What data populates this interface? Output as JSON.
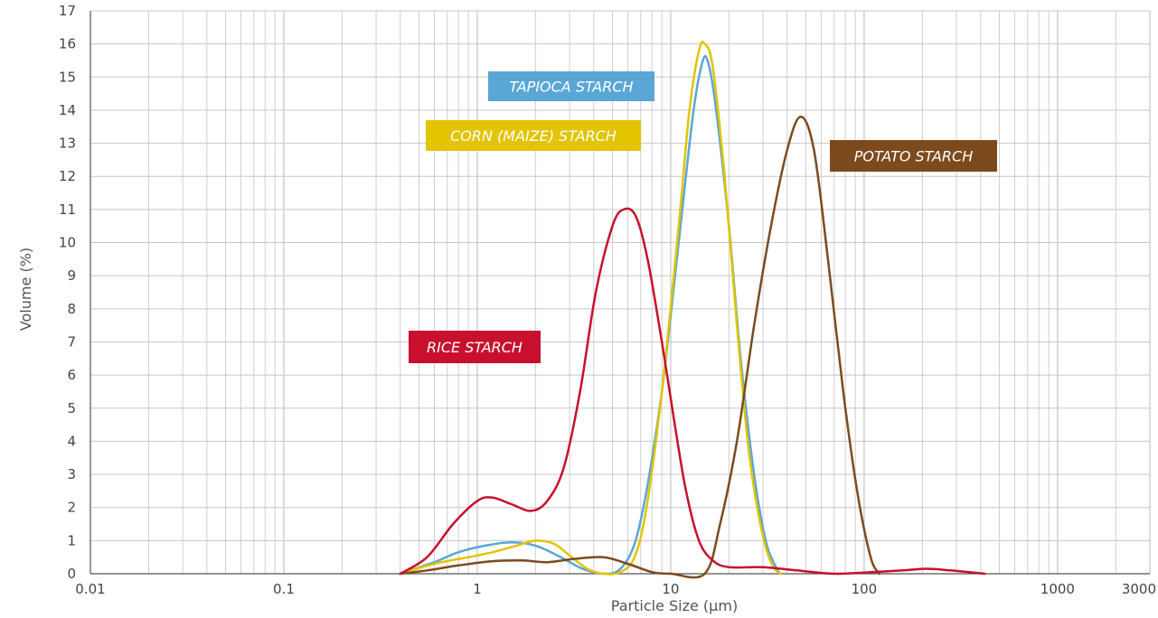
{
  "chart_data": {
    "type": "line",
    "xscale": "log",
    "xlabel": "Particle Size (µm)",
    "ylabel": "Volume (%)",
    "xlim": [
      0.01,
      3000
    ],
    "ylim": [
      0,
      17
    ],
    "grid": true,
    "x_tick_labels": [
      "0.01",
      "0.1",
      "1",
      "10",
      "100",
      "1000",
      "3000"
    ],
    "y_tick_labels": [
      "0",
      "1",
      "2",
      "3",
      "4",
      "5",
      "6",
      "7",
      "8",
      "9",
      "10",
      "11",
      "12",
      "13",
      "14",
      "15",
      "16",
      "17"
    ],
    "series": [
      {
        "name": "TAPIOCA STARCH",
        "color": "#5aa7d6",
        "points": [
          [
            0.4,
            0
          ],
          [
            0.6,
            0.35
          ],
          [
            0.8,
            0.65
          ],
          [
            1.1,
            0.85
          ],
          [
            1.5,
            0.95
          ],
          [
            2,
            0.85
          ],
          [
            2.7,
            0.5
          ],
          [
            3.5,
            0.15
          ],
          [
            4.5,
            0
          ],
          [
            5.5,
            0.15
          ],
          [
            6.5,
            0.9
          ],
          [
            7.5,
            2.5
          ],
          [
            9,
            5.5
          ],
          [
            11,
            10
          ],
          [
            13,
            13.8
          ],
          [
            14.5,
            15.4
          ],
          [
            15.5,
            15.5
          ],
          [
            17,
            14.2
          ],
          [
            20,
            10.5
          ],
          [
            23,
            6.5
          ],
          [
            27,
            3
          ],
          [
            31,
            1
          ],
          [
            35,
            0.2
          ],
          [
            37,
            0
          ]
        ]
      },
      {
        "name": "CORN (MAIZE) STARCH",
        "color": "#e2c400",
        "points": [
          [
            0.4,
            0
          ],
          [
            0.6,
            0.3
          ],
          [
            0.9,
            0.5
          ],
          [
            1.2,
            0.65
          ],
          [
            1.6,
            0.85
          ],
          [
            2,
            1
          ],
          [
            2.5,
            0.9
          ],
          [
            3,
            0.55
          ],
          [
            3.7,
            0.15
          ],
          [
            4.5,
            0
          ],
          [
            5.5,
            0.05
          ],
          [
            6.5,
            0.5
          ],
          [
            7.5,
            2
          ],
          [
            9,
            5.5
          ],
          [
            11,
            10.5
          ],
          [
            12.5,
            14
          ],
          [
            14,
            15.8
          ],
          [
            15,
            16
          ],
          [
            16.5,
            15.3
          ],
          [
            19,
            12
          ],
          [
            22,
            7.5
          ],
          [
            25,
            4
          ],
          [
            28,
            2
          ],
          [
            31,
            0.8
          ],
          [
            34,
            0.2
          ],
          [
            37,
            0
          ]
        ]
      },
      {
        "name": "POTATO STARCH",
        "color": "#7d4a1e",
        "points": [
          [
            0.4,
            0
          ],
          [
            0.55,
            0.1
          ],
          [
            0.8,
            0.25
          ],
          [
            1.2,
            0.38
          ],
          [
            1.7,
            0.4
          ],
          [
            2.3,
            0.35
          ],
          [
            3.2,
            0.45
          ],
          [
            4.5,
            0.5
          ],
          [
            6,
            0.3
          ],
          [
            8,
            0.05
          ],
          [
            10,
            0
          ],
          [
            15,
            0
          ],
          [
            18,
            1.5
          ],
          [
            22,
            4
          ],
          [
            27,
            7.5
          ],
          [
            33,
            10.5
          ],
          [
            40,
            12.8
          ],
          [
            47,
            13.8
          ],
          [
            55,
            12.8
          ],
          [
            65,
            9.5
          ],
          [
            78,
            5.5
          ],
          [
            92,
            2.5
          ],
          [
            108,
            0.5
          ],
          [
            120,
            0
          ]
        ]
      },
      {
        "name": "RICE STARCH",
        "color": "#c8102e",
        "points": [
          [
            0.4,
            0
          ],
          [
            0.55,
            0.5
          ],
          [
            0.75,
            1.5
          ],
          [
            1,
            2.2
          ],
          [
            1.2,
            2.3
          ],
          [
            1.5,
            2.1
          ],
          [
            1.9,
            1.9
          ],
          [
            2.3,
            2.2
          ],
          [
            2.8,
            3.2
          ],
          [
            3.4,
            5.5
          ],
          [
            4.1,
            8.5
          ],
          [
            5,
            10.5
          ],
          [
            5.7,
            11
          ],
          [
            6.6,
            10.8
          ],
          [
            7.6,
            9.5
          ],
          [
            9,
            7
          ],
          [
            10.5,
            4.5
          ],
          [
            12,
            2.5
          ],
          [
            14,
            1
          ],
          [
            16.5,
            0.4
          ],
          [
            20,
            0.2
          ],
          [
            30,
            0.2
          ],
          [
            45,
            0.1
          ],
          [
            70,
            0
          ],
          [
            110,
            0.05
          ],
          [
            160,
            0.1
          ],
          [
            210,
            0.15
          ],
          [
            280,
            0.1
          ],
          [
            420,
            0
          ]
        ]
      }
    ]
  }
}
